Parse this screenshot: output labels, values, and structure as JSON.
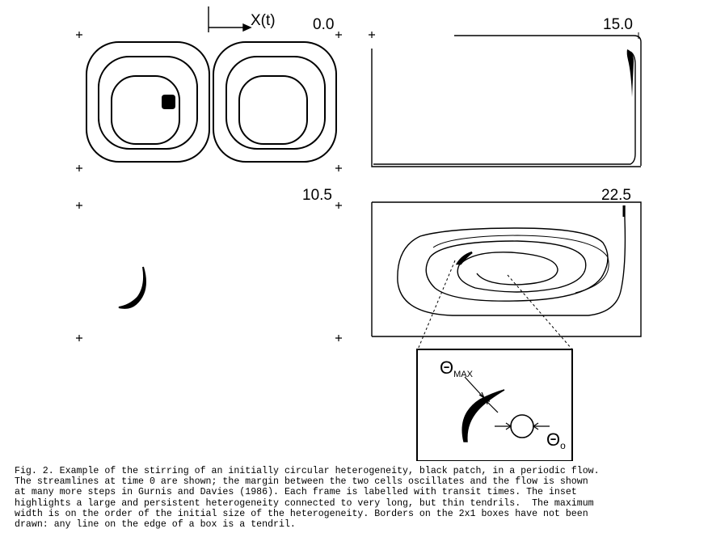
{
  "figure": {
    "axis_label": "X(t)",
    "frame_times": [
      "0.0",
      "15.0",
      "10.5",
      "22.5"
    ],
    "inset": {
      "theta_max": {
        "base": "Θ",
        "sub": "MAX"
      },
      "theta_0": {
        "base": "Θ",
        "sub": "o"
      }
    }
  },
  "caption": {
    "text": "Fig. 2. Example of the stirring of an initially circular heterogeneity, black patch, in a periodic flow.\nThe streamlines at time 0 are shown; the margin between the two cells oscillates and the flow is shown\nat many more steps in Gurnis and Davies (1986). Each frame is labelled with transit times. The inset\nhighlights a large and persistent heterogeneity connected to very long, but thin tendrils.  The maximum\nwidth is on the order of the initial size of the heterogeneity. Borders on the 2x1 boxes have not been\ndrawn: any line on the edge of a box is a tendril."
  }
}
